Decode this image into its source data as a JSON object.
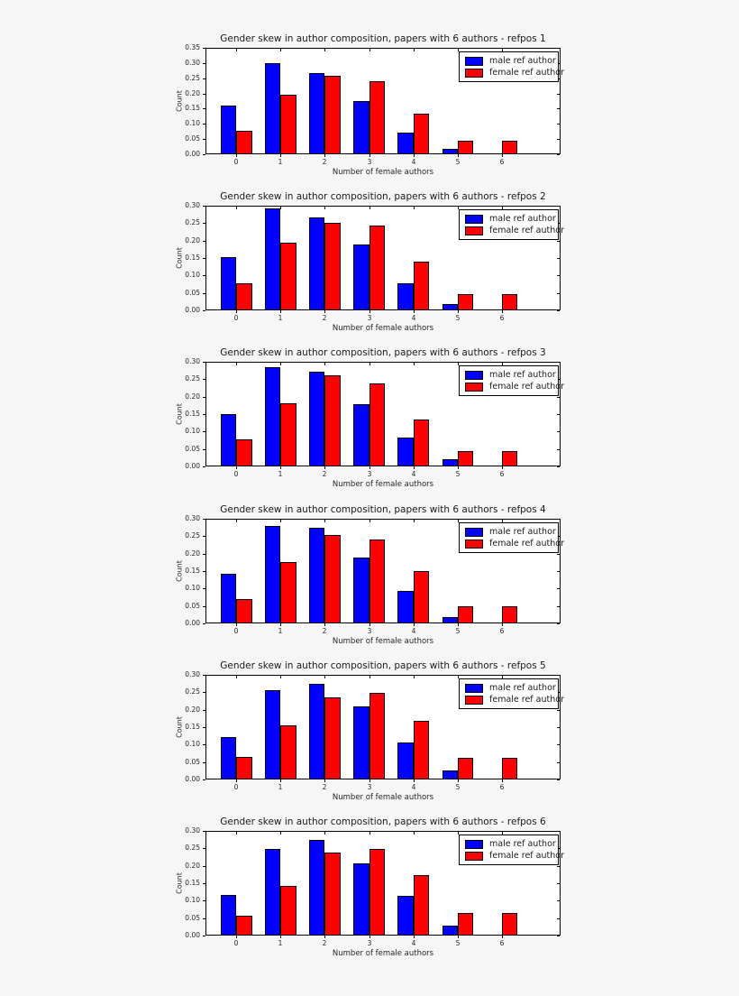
{
  "figure": {
    "background": "#f6f6f6",
    "plot_background": "#ffffff",
    "axis_color": "#000000",
    "text_color": "#1a1a1a",
    "legend": {
      "position": "upper right",
      "entries": [
        {
          "label": "male ref author",
          "color": "#0000ff"
        },
        {
          "label": "female ref author",
          "color": "#ff0000"
        }
      ]
    }
  },
  "chart_data": [
    {
      "type": "bar",
      "title": "Gender skew in author composition, papers with 6 authors - refpos 1",
      "xlabel": "Number of female authors",
      "ylabel": "Count",
      "categories": [
        "0",
        "1",
        "2",
        "3",
        "4",
        "5",
        "6"
      ],
      "series": [
        {
          "name": "male ref author",
          "color": "#0000ff",
          "values": [
            0.16,
            0.301,
            0.268,
            0.176,
            0.072,
            0.017,
            0
          ]
        },
        {
          "name": "female ref author",
          "color": "#ff0000",
          "values": [
            0.076,
            0.195,
            0.259,
            0.241,
            0.133,
            0.045,
            0.045
          ]
        }
      ],
      "ylim": [
        0,
        0.35
      ],
      "yticks": [
        "0.00",
        "0.05",
        "0.10",
        "0.15",
        "0.20",
        "0.25",
        "0.30",
        "0.35"
      ],
      "xlim": [
        -0.7,
        7.33
      ],
      "bar_width": 0.35,
      "legend_position": "upper right",
      "grid": false
    },
    {
      "type": "bar",
      "title": "Gender skew in author composition, papers with 6 authors - refpos 2",
      "xlabel": "Number of female authors",
      "ylabel": "Count",
      "categories": [
        "0",
        "1",
        "2",
        "3",
        "4",
        "5",
        "6"
      ],
      "series": [
        {
          "name": "male ref author",
          "color": "#0000ff",
          "values": [
            0.153,
            0.292,
            0.267,
            0.188,
            0.078,
            0.018,
            0
          ]
        },
        {
          "name": "female ref author",
          "color": "#ff0000",
          "values": [
            0.078,
            0.195,
            0.251,
            0.243,
            0.139,
            0.046,
            0.046
          ]
        }
      ],
      "ylim": [
        0,
        0.3
      ],
      "yticks": [
        "0.00",
        "0.05",
        "0.10",
        "0.15",
        "0.20",
        "0.25",
        "0.30"
      ],
      "xlim": [
        -0.7,
        7.33
      ],
      "bar_width": 0.35,
      "legend_position": "upper right",
      "grid": false
    },
    {
      "type": "bar",
      "title": "Gender skew in author composition, papers with 6 authors - refpos 3",
      "xlabel": "Number of female authors",
      "ylabel": "Count",
      "categories": [
        "0",
        "1",
        "2",
        "3",
        "4",
        "5",
        "6"
      ],
      "series": [
        {
          "name": "male ref author",
          "color": "#0000ff",
          "values": [
            0.15,
            0.285,
            0.272,
            0.178,
            0.083,
            0.02,
            0
          ]
        },
        {
          "name": "female ref author",
          "color": "#ff0000",
          "values": [
            0.078,
            0.182,
            0.261,
            0.239,
            0.135,
            0.045,
            0.045
          ]
        }
      ],
      "ylim": [
        0,
        0.3
      ],
      "yticks": [
        "0.00",
        "0.05",
        "0.10",
        "0.15",
        "0.20",
        "0.25",
        "0.30"
      ],
      "xlim": [
        -0.7,
        7.33
      ],
      "bar_width": 0.35,
      "legend_position": "upper right",
      "grid": false
    },
    {
      "type": "bar",
      "title": "Gender skew in author composition, papers with 6 authors - refpos 4",
      "xlabel": "Number of female authors",
      "ylabel": "Count",
      "categories": [
        "0",
        "1",
        "2",
        "3",
        "4",
        "5",
        "6"
      ],
      "series": [
        {
          "name": "male ref author",
          "color": "#0000ff",
          "values": [
            0.141,
            0.279,
            0.273,
            0.189,
            0.093,
            0.019,
            0
          ]
        },
        {
          "name": "female ref author",
          "color": "#ff0000",
          "values": [
            0.07,
            0.177,
            0.254,
            0.241,
            0.15,
            0.05,
            0.05
          ]
        }
      ],
      "ylim": [
        0,
        0.3
      ],
      "yticks": [
        "0.00",
        "0.05",
        "0.10",
        "0.15",
        "0.20",
        "0.25",
        "0.30"
      ],
      "xlim": [
        -0.7,
        7.33
      ],
      "bar_width": 0.35,
      "legend_position": "upper right",
      "grid": false
    },
    {
      "type": "bar",
      "title": "Gender skew in author composition, papers with 6 authors - refpos 5",
      "xlabel": "Number of female authors",
      "ylabel": "Count",
      "categories": [
        "0",
        "1",
        "2",
        "3",
        "4",
        "5",
        "6"
      ],
      "series": [
        {
          "name": "male ref author",
          "color": "#0000ff",
          "values": [
            0.122,
            0.256,
            0.274,
            0.209,
            0.107,
            0.027,
            0
          ]
        },
        {
          "name": "female ref author",
          "color": "#ff0000",
          "values": [
            0.064,
            0.156,
            0.235,
            0.249,
            0.167,
            0.061,
            0.061
          ]
        }
      ],
      "ylim": [
        0,
        0.3
      ],
      "yticks": [
        "0.00",
        "0.05",
        "0.10",
        "0.15",
        "0.20",
        "0.25",
        "0.30"
      ],
      "xlim": [
        -0.7,
        7.33
      ],
      "bar_width": 0.35,
      "legend_position": "upper right",
      "grid": false
    },
    {
      "type": "bar",
      "title": "Gender skew in author composition, papers with 6 authors - refpos 6",
      "xlabel": "Number of female authors",
      "ylabel": "Count",
      "categories": [
        "0",
        "1",
        "2",
        "3",
        "4",
        "5",
        "6"
      ],
      "series": [
        {
          "name": "male ref author",
          "color": "#0000ff",
          "values": [
            0.116,
            0.247,
            0.273,
            0.208,
            0.113,
            0.029,
            0
          ]
        },
        {
          "name": "female ref author",
          "color": "#ff0000",
          "values": [
            0.057,
            0.142,
            0.237,
            0.249,
            0.172,
            0.064,
            0.064
          ]
        }
      ],
      "ylim": [
        0,
        0.3
      ],
      "yticks": [
        "0.00",
        "0.05",
        "0.10",
        "0.15",
        "0.20",
        "0.25",
        "0.30"
      ],
      "xlim": [
        -0.7,
        7.33
      ],
      "bar_width": 0.35,
      "legend_position": "upper right",
      "grid": false
    }
  ]
}
